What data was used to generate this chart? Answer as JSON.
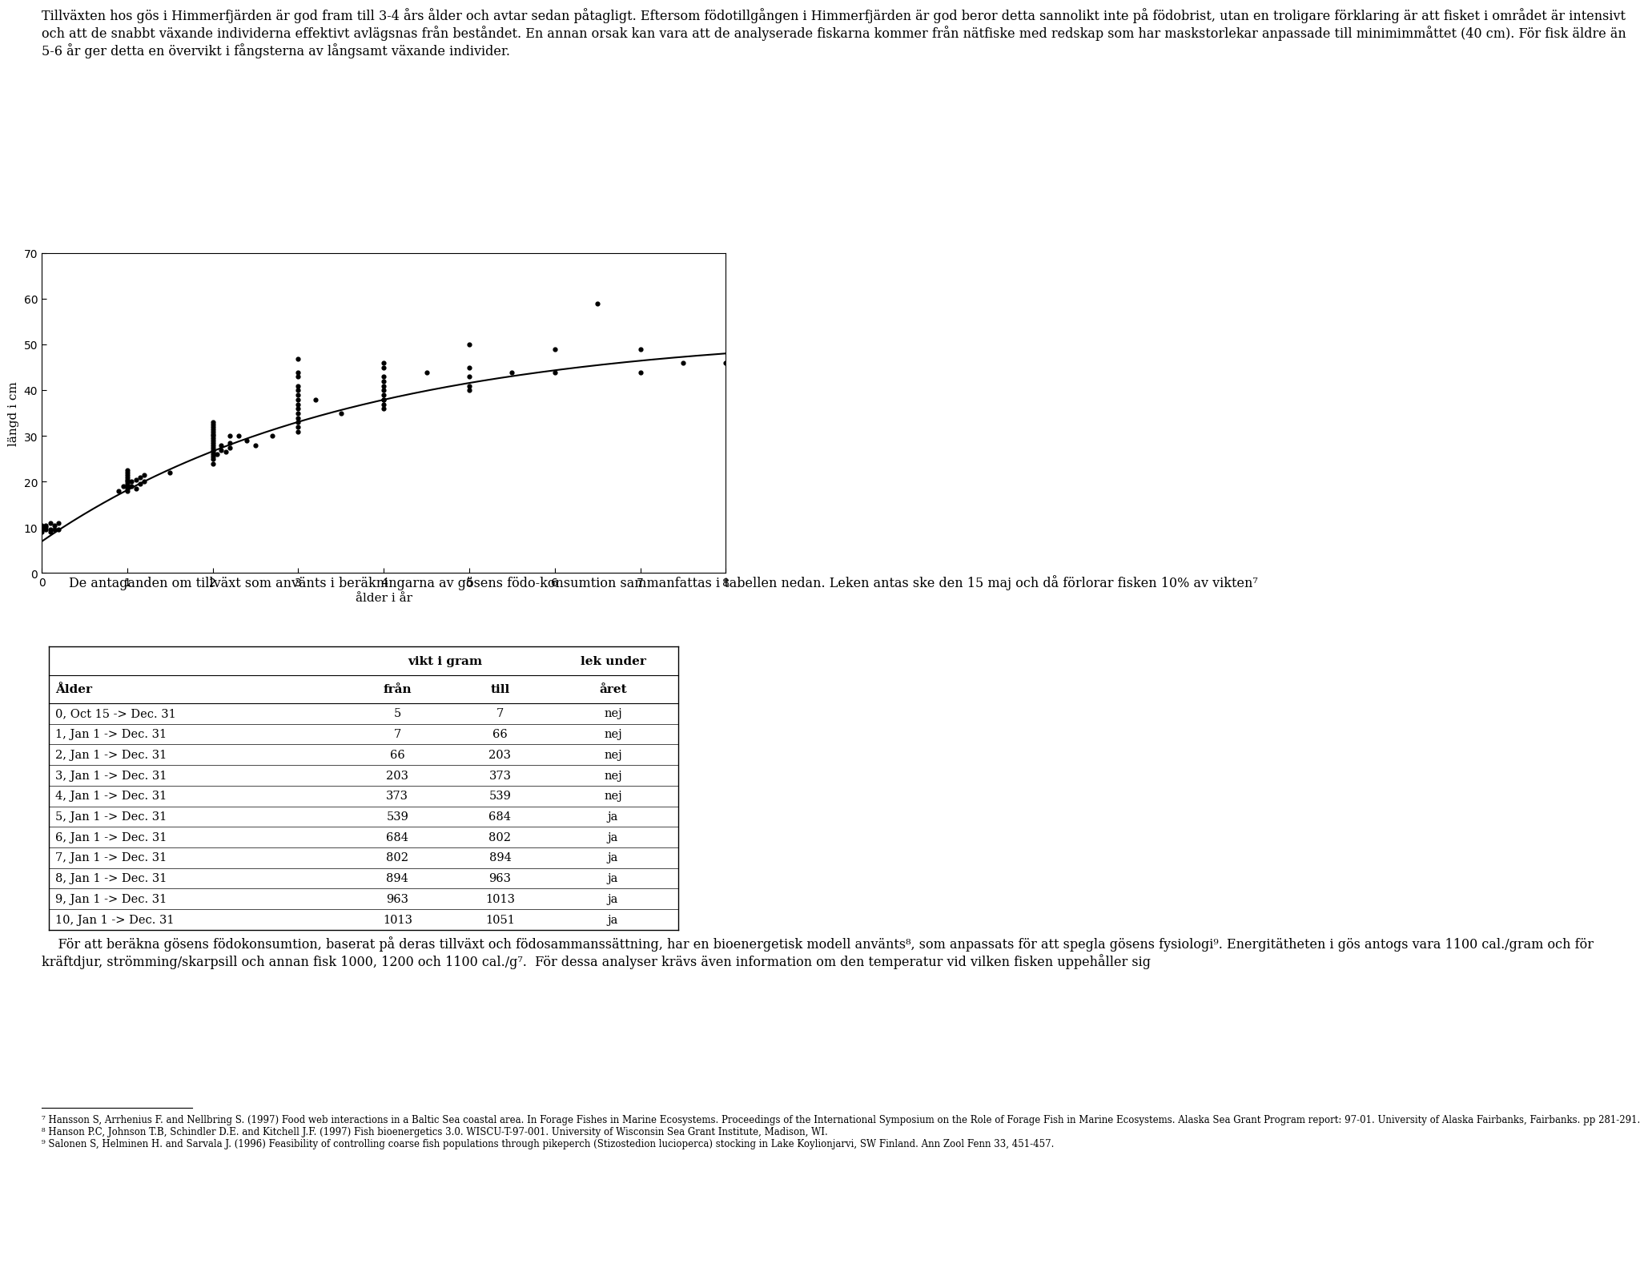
{
  "text_top": "Tillväxten hos gös i Himmerfjärden är god fram till 3-4 års ålder och avtar sedan påtagligt. Eftersom födotillgången i Himmerfjärden är god beror detta sannolikt inte på födobrist, utan en troligare förklaring är att fisket i området är intensivt och att de snabbt växande individerna effektivt avlägsnas från beståndet. En annan orsak kan vara att de analyserade fiskarna kommer från nätfiske med redskap som har maskstorlekar anpassade till minimimmåttet (40 cm). För fisk äldre än 5-6 år ger detta en övervikt i fångsterna av långsamt växande individer.",
  "scatter_x": [
    0.0,
    0.0,
    0.0,
    0.0,
    0.05,
    0.05,
    0.05,
    0.1,
    0.1,
    0.1,
    0.15,
    0.15,
    0.2,
    0.2,
    0.9,
    0.95,
    1.0,
    1.0,
    1.0,
    1.0,
    1.0,
    1.0,
    1.0,
    1.0,
    1.0,
    1.0,
    1.05,
    1.05,
    1.1,
    1.1,
    1.15,
    1.15,
    1.2,
    1.2,
    1.5,
    2.0,
    2.0,
    2.0,
    2.0,
    2.0,
    2.0,
    2.0,
    2.0,
    2.0,
    2.0,
    2.0,
    2.0,
    2.0,
    2.0,
    2.0,
    2.0,
    2.0,
    2.0,
    2.05,
    2.1,
    2.1,
    2.15,
    2.2,
    2.2,
    2.2,
    2.3,
    2.4,
    2.5,
    2.7,
    3.0,
    3.0,
    3.0,
    3.0,
    3.0,
    3.0,
    3.0,
    3.0,
    3.0,
    3.0,
    3.0,
    3.0,
    3.0,
    3.0,
    3.2,
    3.5,
    4.0,
    4.0,
    4.0,
    4.0,
    4.0,
    4.0,
    4.0,
    4.0,
    4.0,
    4.0,
    4.0,
    4.5,
    5.0,
    5.0,
    5.0,
    5.0,
    5.0,
    5.5,
    6.0,
    6.0,
    6.5,
    7.0,
    7.0,
    7.5,
    8.0
  ],
  "scatter_y": [
    9.0,
    9.5,
    10.0,
    10.5,
    9.5,
    10.0,
    10.5,
    9.0,
    9.5,
    11.0,
    9.5,
    10.5,
    9.5,
    11.0,
    18.0,
    19.0,
    18.0,
    18.5,
    19.0,
    19.5,
    20.0,
    20.5,
    21.0,
    21.5,
    22.0,
    22.5,
    19.0,
    20.0,
    18.5,
    20.5,
    19.5,
    21.0,
    20.0,
    21.5,
    22.0,
    24.0,
    25.0,
    25.5,
    26.0,
    26.5,
    27.0,
    27.5,
    28.0,
    28.5,
    29.0,
    29.5,
    30.0,
    30.5,
    31.0,
    31.5,
    32.0,
    32.5,
    33.0,
    26.0,
    27.0,
    28.0,
    26.5,
    27.5,
    28.5,
    30.0,
    30.0,
    29.0,
    28.0,
    30.0,
    31.0,
    32.0,
    33.0,
    34.0,
    35.0,
    36.0,
    37.0,
    38.0,
    39.0,
    40.0,
    41.0,
    43.0,
    44.0,
    47.0,
    38.0,
    35.0,
    36.0,
    37.0,
    38.0,
    39.0,
    40.0,
    41.0,
    42.0,
    43.0,
    45.0,
    46.0,
    38.0,
    44.0,
    40.0,
    41.0,
    43.0,
    45.0,
    50.0,
    44.0,
    44.0,
    49.0,
    59.0,
    44.0,
    49.0,
    46.0,
    46.0
  ],
  "curve_params": {
    "Linf": 53.0,
    "k": 0.28,
    "t0": -0.5
  },
  "xlabel": "ålder i år",
  "ylabel": "längd i cm",
  "xlim": [
    0,
    8
  ],
  "ylim": [
    0,
    70
  ],
  "yticks": [
    0,
    10,
    20,
    30,
    40,
    50,
    60,
    70
  ],
  "xticks": [
    0,
    1,
    2,
    3,
    4,
    5,
    6,
    7,
    8
  ],
  "text_below_plot": "De antaganden om tillväxt som använts i beräkningarna av gösens födo-konsumtion sammanfattas i tabellen nedan. Leken antas ske den 15 maj och då förlorar fisken 10% av vikten⁷",
  "table_header_row1_col1": "vikt i gram",
  "table_header_row1_col2": "lek under",
  "table_header_row2": [
    "Ålder",
    "från",
    "till",
    "året"
  ],
  "table_rows": [
    [
      "0, Oct 15 -> Dec. 31",
      "5",
      "7",
      "nej"
    ],
    [
      "1, Jan 1 -> Dec. 31",
      "7",
      "66",
      "nej"
    ],
    [
      "2, Jan 1 -> Dec. 31",
      "66",
      "203",
      "nej"
    ],
    [
      "3, Jan 1 -> Dec. 31",
      "203",
      "373",
      "nej"
    ],
    [
      "4, Jan 1 -> Dec. 31",
      "373",
      "539",
      "nej"
    ],
    [
      "5, Jan 1 -> Dec. 31",
      "539",
      "684",
      "ja"
    ],
    [
      "6, Jan 1 -> Dec. 31",
      "684",
      "802",
      "ja"
    ],
    [
      "7, Jan 1 -> Dec. 31",
      "802",
      "894",
      "ja"
    ],
    [
      "8, Jan 1 -> Dec. 31",
      "894",
      "963",
      "ja"
    ],
    [
      "9, Jan 1 -> Dec. 31",
      "963",
      "1013",
      "ja"
    ],
    [
      "10, Jan 1 -> Dec. 31",
      "1013",
      "1051",
      "ja"
    ]
  ],
  "bottom_para": "    För att beräkna gösens födokonsumtion, baserat på deras tillväxt och födosammanssättning, har en bioenergetisk modell använts⁸, som anpassats för att spegla gösens fysiologi⁹. Energitätheten i gös antogs vara 1100 cal./gram och för kräftdjur, strömming/skarpsill och annan fisk 1000, 1200 och 1100 cal./g⁷.  För dessa analyser krävs även information om den temperatur vid vilken fisken uppehåller sig",
  "footnote_text": "⁷ Hansson S, Arrhenius F. and Nellbring S. (1997) Food web interactions in a Baltic Sea coastal area. In Forage Fishes in Marine Ecosystems. Proceedings of the International Symposium on the Role of Forage Fish in Marine Ecosystems. Alaska Sea Grant Program report: 97-01. University of Alaska Fairbanks, Fairbanks. pp 281-291.\n⁸ Hanson P.C, Johnson T.B, Schindler D.E. and Kitchell J.F. (1997) Fish bioenergetics 3.0. WISCU-T-97-001. University of Wisconsin Sea Grant Institute, Madison, WI.\n⁹ Salonen S, Helminen H. and Sarvala J. (1996) Feasibility of controlling coarse fish populations through pikeperch (Stizostedion lucioperca) stocking in Lake Koylionjarvi, SW Finland. Ann Zool Fenn 33, 451-457."
}
